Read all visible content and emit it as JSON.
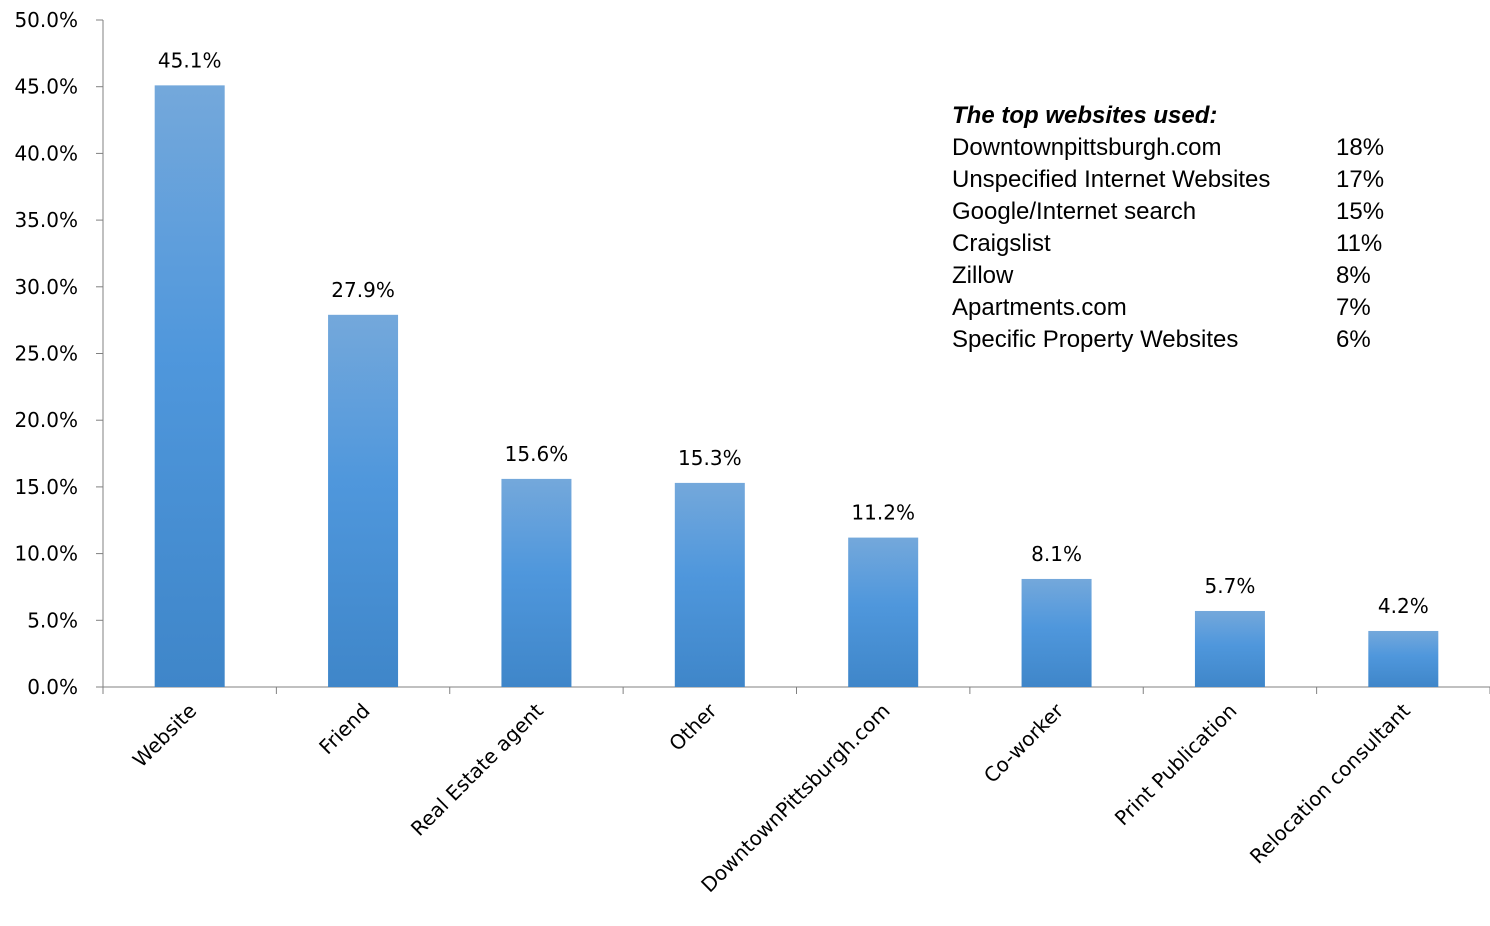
{
  "chart_data": {
    "type": "bar",
    "categories": [
      "Website",
      "Friend",
      "Real Estate agent",
      "Other",
      "DowntownPittsburgh.com",
      "Co-worker",
      "Print Publication",
      "Relocation consultant"
    ],
    "values": [
      45.1,
      27.9,
      15.6,
      15.3,
      11.2,
      8.1,
      5.7,
      4.2
    ],
    "data_labels": [
      "45.1%",
      "27.9%",
      "15.6%",
      "15.3%",
      "11.2%",
      "8.1%",
      "5.7%",
      "4.2%"
    ],
    "y_ticks": [
      "0.0%",
      "5.0%",
      "10.0%",
      "15.0%",
      "20.0%",
      "25.0%",
      "30.0%",
      "35.0%",
      "40.0%",
      "45.0%",
      "50.0%"
    ],
    "ylim": [
      0,
      50
    ],
    "grid": false,
    "legend": "none",
    "bar_color_top": "#74a8db",
    "bar_color_bottom": "#3f86c9"
  },
  "websites_box": {
    "title": "The top websites used:",
    "items": [
      {
        "name": "Downtownpittsburgh.com",
        "pct": "18%"
      },
      {
        "name": "Unspecified Internet Websites",
        "pct": "17%"
      },
      {
        "name": "Google/Internet search",
        "pct": "15%"
      },
      {
        "name": "Craigslist",
        "pct": "11%"
      },
      {
        "name": "Zillow",
        "pct": "8%"
      },
      {
        "name": "Apartments.com",
        "pct": "7%"
      },
      {
        "name": "Specific Property Websites",
        "pct": "6%"
      }
    ]
  }
}
